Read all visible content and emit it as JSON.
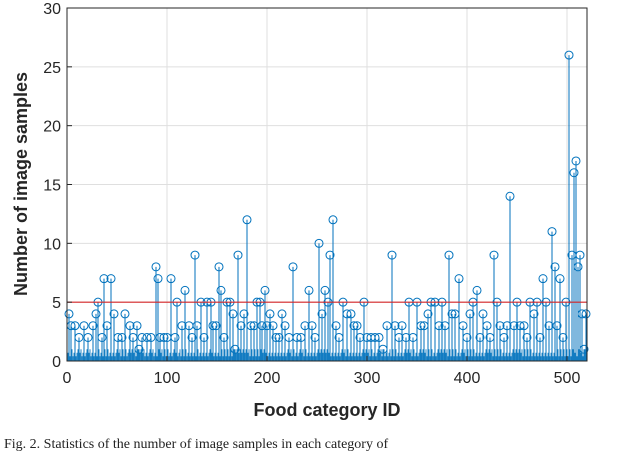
{
  "chart_data": {
    "type": "stem",
    "xlabel": "Food category ID",
    "ylabel": "Number of image samples",
    "xlim": [
      0,
      520
    ],
    "ylim": [
      0,
      30
    ],
    "xticks": [
      0,
      100,
      200,
      300,
      400,
      500
    ],
    "yticks": [
      0,
      5,
      10,
      15,
      20,
      25,
      30
    ],
    "grid": true,
    "threshold_line": {
      "y": 5,
      "color": "#d62728"
    },
    "stem_color": "#0072BD",
    "series": [
      {
        "x": [
          2,
          4,
          8,
          12,
          17,
          21,
          26,
          29,
          31,
          35,
          37,
          40,
          44,
          47,
          51,
          55,
          58,
          63,
          66,
          70,
          72,
          75,
          80,
          84,
          89,
          91,
          93,
          97,
          100,
          104,
          108,
          110,
          115,
          118,
          122,
          125,
          128,
          130,
          134,
          137,
          140,
          144,
          146,
          149,
          152,
          154,
          157,
          160,
          163,
          166,
          168,
          171,
          174,
          177,
          180,
          184,
          187,
          190,
          193,
          195,
          198,
          200,
          203,
          206,
          209,
          212,
          215,
          218,
          222,
          226,
          230,
          234,
          238,
          242,
          245,
          248,
          252,
          255,
          258,
          261,
          263,
          266,
          269,
          272,
          276,
          280,
          284,
          287,
          290,
          293,
          297,
          300,
          304,
          308,
          312,
          316,
          320,
          325,
          328,
          332,
          335,
          339,
          342,
          346,
          350,
          354,
          357,
          361,
          364,
          368,
          372,
          375,
          378,
          382,
          385,
          388,
          392,
          396,
          400,
          403,
          406,
          410,
          413,
          416,
          420,
          423,
          427,
          430,
          433,
          437,
          440,
          443,
          447,
          450,
          453,
          457,
          460,
          463,
          467,
          470,
          473,
          476,
          479,
          482,
          485,
          488,
          490,
          493,
          496,
          499,
          502,
          505,
          507,
          509,
          511,
          513,
          515,
          517,
          519
        ],
        "y": [
          4,
          3,
          3,
          2,
          3,
          2,
          3,
          4,
          5,
          2,
          7,
          3,
          7,
          4,
          2,
          2,
          4,
          3,
          2,
          3,
          1,
          2,
          2,
          2,
          8,
          7,
          2,
          2,
          2,
          7,
          2,
          5,
          3,
          6,
          3,
          2,
          9,
          3,
          5,
          2,
          5,
          5,
          3,
          3,
          8,
          6,
          2,
          5,
          5,
          4,
          1,
          9,
          3,
          4,
          12,
          3,
          3,
          5,
          5,
          3,
          6,
          3,
          4,
          3,
          2,
          2,
          4,
          3,
          2,
          8,
          2,
          2,
          3,
          6,
          3,
          2,
          10,
          4,
          6,
          5,
          9,
          12,
          3,
          2,
          5,
          4,
          4,
          3,
          3,
          2,
          5,
          2,
          2,
          2,
          2,
          1,
          3,
          9,
          3,
          2,
          3,
          2,
          5,
          2,
          5,
          3,
          3,
          4,
          5,
          5,
          3,
          5,
          3,
          9,
          4,
          4,
          7,
          3,
          2,
          4,
          5,
          6,
          2,
          4,
          3,
          2,
          9,
          5,
          3,
          2,
          3,
          14,
          3,
          5,
          3,
          3,
          2,
          5,
          4,
          5,
          2,
          7,
          5,
          3,
          11,
          8,
          3,
          7,
          2,
          5,
          26,
          9,
          16,
          17,
          8,
          9,
          4,
          1,
          4
        ]
      }
    ]
  },
  "caption": "Fig. 2.  Statistics of the number of image samples in each category of"
}
